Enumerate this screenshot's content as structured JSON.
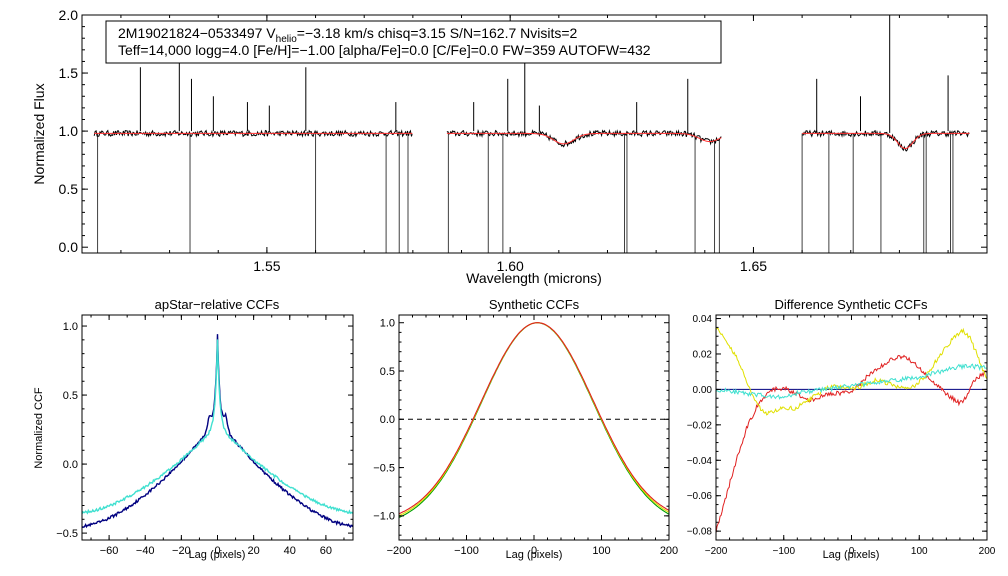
{
  "chart_data": [
    {
      "type": "line",
      "id": "spectrum",
      "xlabel": "Wavelength (microns)",
      "ylabel": "Normalized Flux",
      "xlim": [
        1.512,
        1.698
      ],
      "ylim": [
        -0.05,
        2.0
      ],
      "xticks": [
        1.55,
        1.6,
        1.65
      ],
      "xtick_labels": [
        "1.55",
        "1.60",
        "1.65"
      ],
      "yticks": [
        0.0,
        0.5,
        1.0,
        1.5,
        2.0
      ],
      "ytick_labels": [
        "0.0",
        "0.5",
        "1.0",
        "1.5",
        "2.0"
      ],
      "annotation": {
        "line1_pre": "2M19021824−0533497  V",
        "line1_sub": "helio",
        "line1_post": "=−3.18 km/s  chisq=3.15  S/N=162.7  Nvisits=2",
        "line2": "Teff=14,000 logg=4.0 [Fe/H]=−1.00 [alpha/Fe]=0.0 [C/Fe]=0.0 FW=359 AUTOFW=432"
      },
      "segments": [
        [
          1.5145,
          1.58
        ],
        [
          1.587,
          1.6435
        ],
        [
          1.66,
          1.6945
        ]
      ],
      "absorption_features": [
        {
          "center": 1.611,
          "depth": 0.09,
          "width": 0.003
        },
        {
          "center": 1.641,
          "depth": 0.07,
          "width": 0.003
        },
        {
          "center": 1.6812,
          "depth": 0.13,
          "width": 0.0022
        }
      ],
      "emission_spikes": [
        {
          "x": 1.524,
          "y": 1.55
        },
        {
          "x": 1.532,
          "y": 1.62
        },
        {
          "x": 1.5345,
          "y": 1.45
        },
        {
          "x": 1.539,
          "y": 1.3
        },
        {
          "x": 1.546,
          "y": 1.25
        },
        {
          "x": 1.5505,
          "y": 1.22
        },
        {
          "x": 1.558,
          "y": 1.55
        },
        {
          "x": 1.5765,
          "y": 1.25
        },
        {
          "x": 1.5925,
          "y": 1.25
        },
        {
          "x": 1.5995,
          "y": 1.45
        },
        {
          "x": 1.603,
          "y": 1.6
        },
        {
          "x": 1.606,
          "y": 1.22
        },
        {
          "x": 1.626,
          "y": 1.25
        },
        {
          "x": 1.6365,
          "y": 1.45
        },
        {
          "x": 1.663,
          "y": 1.45
        },
        {
          "x": 1.672,
          "y": 1.3
        },
        {
          "x": 1.678,
          "y": 2.08
        },
        {
          "x": 1.69,
          "y": 1.48
        }
      ],
      "drop_lines": [
        1.5152,
        1.5342,
        1.56,
        1.5745,
        1.5772,
        1.579,
        1.5873,
        1.5955,
        1.5985,
        1.6235,
        1.624,
        1.638,
        1.642,
        1.643,
        1.66,
        1.6655,
        1.6705,
        1.6762,
        1.685,
        1.6855,
        1.6905,
        1.691
      ],
      "series": [
        {
          "name": "observed",
          "color": "#000000"
        },
        {
          "name": "model",
          "color": "#ff3030"
        }
      ]
    },
    {
      "type": "line",
      "id": "apstar-ccf",
      "title": "apStar−relative CCFs",
      "xlabel": "Lag (pixels)",
      "ylabel": "Normalized CCF",
      "xlim": [
        -75,
        75
      ],
      "ylim": [
        -0.55,
        1.08
      ],
      "xticks": [
        -60,
        -40,
        -20,
        0,
        20,
        40,
        60
      ],
      "xtick_labels": [
        "−60",
        "−40",
        "−20",
        "0",
        "20",
        "40",
        "60"
      ],
      "yticks": [
        -0.5,
        0.0,
        0.5,
        1.0
      ],
      "ytick_labels": [
        "−0.5",
        "0.0",
        "0.5",
        "1.0"
      ],
      "series": [
        {
          "name": "ccf-1",
          "color": "#000080",
          "edge": -0.45,
          "base": 0.32
        },
        {
          "name": "ccf-2",
          "color": "#40e0d0",
          "edge": -0.35,
          "base": 0.28
        }
      ]
    },
    {
      "type": "line",
      "id": "synthetic-ccf",
      "title": "Synthetic CCFs",
      "xlabel": "Lag (pixels)",
      "xlim": [
        -200,
        200
      ],
      "ylim": [
        -1.25,
        1.08
      ],
      "xticks": [
        -200,
        -100,
        0,
        100,
        200
      ],
      "xtick_labels": [
        "−200",
        "−100",
        "0",
        "100",
        "200"
      ],
      "yticks": [
        -1.0,
        -0.5,
        0.0,
        0.5,
        1.0
      ],
      "ytick_labels": [
        "−1.0",
        "−0.5",
        "0.0",
        "0.5",
        "1.0"
      ],
      "reference_line": 0.0,
      "series": [
        {
          "name": "synthetic-green",
          "color": "#00a000"
        },
        {
          "name": "synthetic-yellow",
          "color": "#e0e000"
        },
        {
          "name": "synthetic-red",
          "color": "#e02020"
        }
      ]
    },
    {
      "type": "line",
      "id": "difference-ccf",
      "title": "Difference Synthetic CCFs",
      "xlabel": "Lag (pixels)",
      "xlim": [
        -200,
        200
      ],
      "ylim": [
        -0.085,
        0.042
      ],
      "xticks": [
        -200,
        -100,
        0,
        100,
        200
      ],
      "xtick_labels": [
        "−200",
        "−100",
        "0",
        "100",
        "200"
      ],
      "yticks": [
        -0.08,
        -0.06,
        -0.04,
        -0.02,
        0.0,
        0.02,
        0.04
      ],
      "ytick_labels": [
        "−0.08",
        "−0.06",
        "−0.04",
        "−0.02",
        "0.00",
        "0.02",
        "0.04"
      ],
      "series": [
        {
          "name": "diff-navy",
          "color": "#000080",
          "points": [
            [
              -200,
              0.0
            ],
            [
              200,
              0.0
            ]
          ]
        },
        {
          "name": "diff-red",
          "color": "#e02020",
          "points": [
            [
              -200,
              -0.08
            ],
            [
              -185,
              -0.06
            ],
            [
              -170,
              -0.04
            ],
            [
              -155,
              -0.022
            ],
            [
              -140,
              -0.01
            ],
            [
              -125,
              -0.003
            ],
            [
              -110,
              0.001
            ],
            [
              -95,
              0.0
            ],
            [
              -80,
              -0.003
            ],
            [
              -65,
              -0.006
            ],
            [
              -50,
              -0.005
            ],
            [
              -35,
              -0.003
            ],
            [
              -20,
              -0.002
            ],
            [
              -5,
              -0.002
            ],
            [
              10,
              0.002
            ],
            [
              25,
              0.008
            ],
            [
              40,
              0.012
            ],
            [
              55,
              0.016
            ],
            [
              70,
              0.019
            ],
            [
              85,
              0.017
            ],
            [
              100,
              0.012
            ],
            [
              115,
              0.006
            ],
            [
              130,
              0.001
            ],
            [
              145,
              -0.004
            ],
            [
              160,
              -0.008
            ],
            [
              170,
              -0.004
            ],
            [
              180,
              0.004
            ],
            [
              190,
              0.008
            ],
            [
              200,
              0.01
            ]
          ]
        },
        {
          "name": "diff-yellow",
          "color": "#e0e000",
          "points": [
            [
              -200,
              0.035
            ],
            [
              -185,
              0.028
            ],
            [
              -170,
              0.018
            ],
            [
              -155,
              0.005
            ],
            [
              -140,
              -0.008
            ],
            [
              -128,
              -0.014
            ],
            [
              -115,
              -0.012
            ],
            [
              -100,
              -0.01
            ],
            [
              -85,
              -0.011
            ],
            [
              -70,
              -0.008
            ],
            [
              -55,
              -0.004
            ],
            [
              -40,
              0.0
            ],
            [
              -25,
              0.002
            ],
            [
              -10,
              0.001
            ],
            [
              5,
              0.0
            ],
            [
              20,
              0.003
            ],
            [
              35,
              0.005
            ],
            [
              50,
              0.004
            ],
            [
              65,
              0.002
            ],
            [
              80,
              0.0
            ],
            [
              95,
              0.002
            ],
            [
              110,
              0.008
            ],
            [
              125,
              0.016
            ],
            [
              140,
              0.024
            ],
            [
              155,
              0.031
            ],
            [
              165,
              0.033
            ],
            [
              175,
              0.029
            ],
            [
              185,
              0.02
            ],
            [
              195,
              0.01
            ],
            [
              200,
              0.006
            ]
          ]
        },
        {
          "name": "diff-cyan",
          "color": "#40e0d0",
          "points": [
            [
              -200,
              0.0
            ],
            [
              -180,
              -0.001
            ],
            [
              -160,
              -0.002
            ],
            [
              -140,
              -0.003
            ],
            [
              -120,
              -0.004
            ],
            [
              -100,
              -0.004
            ],
            [
              -80,
              -0.002
            ],
            [
              -60,
              -0.001
            ],
            [
              -40,
              0.0
            ],
            [
              -20,
              0.001
            ],
            [
              0,
              0.002
            ],
            [
              20,
              0.003
            ],
            [
              40,
              0.004
            ],
            [
              60,
              0.005
            ],
            [
              80,
              0.006
            ],
            [
              100,
              0.007
            ],
            [
              120,
              0.009
            ],
            [
              140,
              0.011
            ],
            [
              160,
              0.013
            ],
            [
              180,
              0.013
            ],
            [
              200,
              0.012
            ]
          ]
        }
      ]
    }
  ]
}
